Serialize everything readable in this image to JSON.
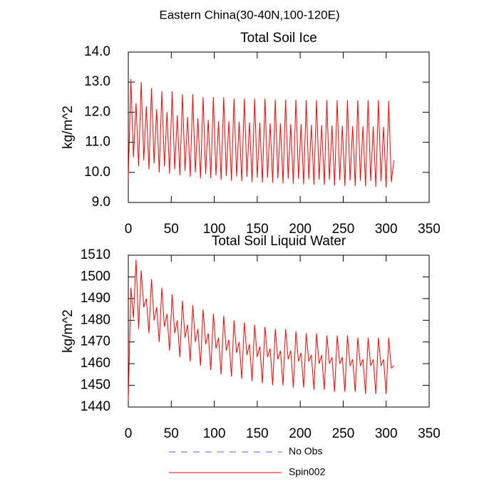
{
  "title": "Eastern China(30-40N,100-120E)",
  "legend": [
    {
      "name": "No Obs",
      "color": "#5a5aff",
      "dashed": true
    },
    {
      "name": "Spin002",
      "color": "#ff0000",
      "dashed": false
    }
  ],
  "chart_data": [
    {
      "type": "line",
      "title": "Total Soil Ice",
      "y_label": "kg/m^2",
      "xlim": [
        0,
        350
      ],
      "xticks": [
        0,
        50,
        100,
        150,
        200,
        250,
        300,
        350
      ],
      "ylim": [
        9,
        14
      ],
      "yticks": [
        {
          "value": 9,
          "label": "9.0"
        },
        {
          "value": 10,
          "label": "10.0"
        },
        {
          "value": 11,
          "label": "11.0"
        },
        {
          "value": 12,
          "label": "12.0"
        },
        {
          "value": 13,
          "label": "13.0"
        },
        {
          "value": 14,
          "label": "14.0"
        }
      ],
      "x": [
        0,
        3,
        6,
        9,
        12,
        15,
        18,
        21,
        24,
        27,
        30,
        33,
        36,
        39,
        42,
        45,
        48,
        51,
        54,
        57,
        60,
        63,
        66,
        69,
        72,
        75,
        78,
        81,
        84,
        87,
        90,
        93,
        96,
        99,
        102,
        105,
        108,
        111,
        114,
        117,
        120,
        123,
        126,
        129,
        132,
        135,
        138,
        141,
        144,
        147,
        150,
        153,
        156,
        159,
        162,
        165,
        168,
        171,
        174,
        177,
        180,
        183,
        186,
        189,
        192,
        195,
        198,
        201,
        204,
        207,
        210,
        213,
        216,
        219,
        222,
        225,
        228,
        231,
        234,
        237,
        240,
        243,
        246,
        249,
        252,
        255,
        258,
        261,
        264,
        267,
        270,
        273,
        276,
        279,
        282,
        285,
        288,
        291,
        294,
        297,
        300,
        303,
        306,
        309
      ],
      "series": [
        {
          "color": "#ff0000",
          "values": [
            9.8,
            13.1,
            10.5,
            12.3,
            10.2,
            13.0,
            10.4,
            12.2,
            10.1,
            12.8,
            10.3,
            12.1,
            10.0,
            12.7,
            10.2,
            12.0,
            9.95,
            12.7,
            10.1,
            11.9,
            9.9,
            12.6,
            10.05,
            11.85,
            9.85,
            12.6,
            10.0,
            11.8,
            9.8,
            12.5,
            9.95,
            11.75,
            9.8,
            12.5,
            9.9,
            11.7,
            9.75,
            12.5,
            9.88,
            11.7,
            9.72,
            12.45,
            9.86,
            11.68,
            9.7,
            12.45,
            9.85,
            11.66,
            9.68,
            12.45,
            9.83,
            11.65,
            9.66,
            12.45,
            9.82,
            11.63,
            9.65,
            12.42,
            9.8,
            11.62,
            9.63,
            12.42,
            9.79,
            11.6,
            9.62,
            12.42,
            9.78,
            11.6,
            9.6,
            12.4,
            9.77,
            11.58,
            9.59,
            12.4,
            9.76,
            11.57,
            9.58,
            12.4,
            9.75,
            11.56,
            9.56,
            12.4,
            9.74,
            11.55,
            9.55,
            12.4,
            9.73,
            11.54,
            9.54,
            12.4,
            9.72,
            11.53,
            9.53,
            12.4,
            9.71,
            11.52,
            9.52,
            12.4,
            9.7,
            11.51,
            9.5,
            12.38,
            9.68,
            10.4
          ]
        }
      ]
    },
    {
      "type": "line",
      "title": "Total Soil Liquid Water",
      "y_label": "kg/m^2",
      "xlim": [
        0,
        350
      ],
      "xticks": [
        0,
        50,
        100,
        150,
        200,
        250,
        300,
        350
      ],
      "ylim": [
        1440,
        1510
      ],
      "yticks": [
        1440,
        1450,
        1460,
        1470,
        1480,
        1490,
        1500,
        1510
      ],
      "x": [
        0,
        3,
        6,
        9,
        12,
        15,
        18,
        21,
        24,
        27,
        30,
        33,
        36,
        39,
        42,
        45,
        48,
        51,
        54,
        57,
        60,
        63,
        66,
        69,
        72,
        75,
        78,
        81,
        84,
        87,
        90,
        93,
        96,
        99,
        102,
        105,
        108,
        111,
        114,
        117,
        120,
        123,
        126,
        129,
        132,
        135,
        138,
        141,
        144,
        147,
        150,
        153,
        156,
        159,
        162,
        165,
        168,
        171,
        174,
        177,
        180,
        183,
        186,
        189,
        192,
        195,
        198,
        201,
        204,
        207,
        210,
        213,
        216,
        219,
        222,
        225,
        228,
        231,
        234,
        237,
        240,
        243,
        246,
        249,
        252,
        255,
        258,
        261,
        264,
        267,
        270,
        273,
        276,
        279,
        282,
        285,
        288,
        291,
        294,
        297,
        300,
        303,
        306,
        309
      ],
      "series": [
        {
          "color": "#ff0000",
          "values": [
            1443,
            1495,
            1481,
            1508,
            1476,
            1503,
            1486,
            1490,
            1474,
            1499,
            1480,
            1486,
            1470,
            1495,
            1477,
            1483,
            1466,
            1492,
            1474,
            1480,
            1463,
            1489,
            1472,
            1478,
            1461,
            1487,
            1470,
            1476,
            1459,
            1485,
            1469,
            1474,
            1457,
            1483,
            1467,
            1472,
            1455,
            1482,
            1466,
            1471,
            1454,
            1480,
            1465,
            1470,
            1453,
            1479,
            1464,
            1469,
            1452,
            1478,
            1463,
            1468,
            1451,
            1477,
            1463,
            1467,
            1450,
            1476,
            1462,
            1466,
            1450,
            1476,
            1462,
            1466,
            1449,
            1475,
            1461,
            1465,
            1449,
            1474,
            1461,
            1464,
            1448,
            1474,
            1460,
            1464,
            1448,
            1473,
            1460,
            1463,
            1447,
            1473,
            1460,
            1463,
            1447,
            1473,
            1459,
            1462,
            1447,
            1472,
            1459,
            1462,
            1446,
            1472,
            1459,
            1462,
            1446,
            1472,
            1459,
            1462,
            1446,
            1472,
            1458,
            1459
          ]
        }
      ]
    }
  ]
}
